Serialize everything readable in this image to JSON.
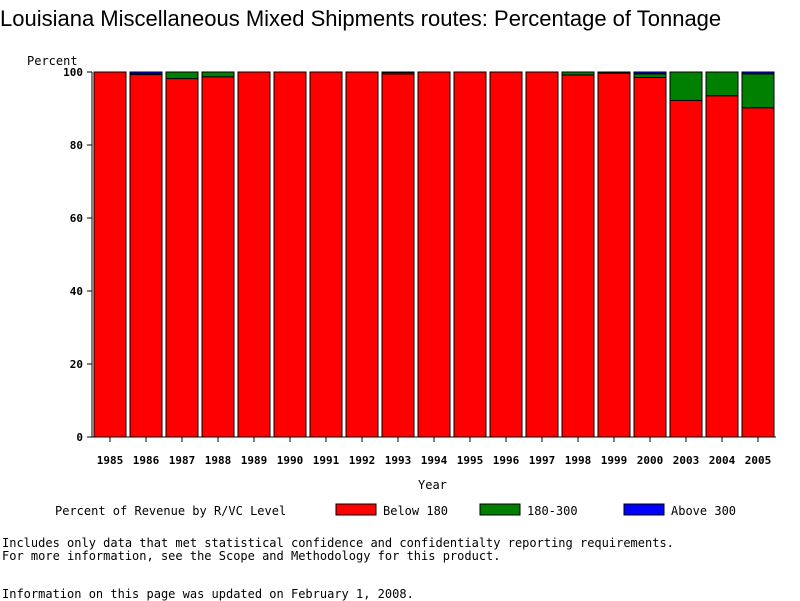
{
  "title": "Louisiana Miscellaneous Mixed Shipments routes: Percentage of Tonnage",
  "notes": {
    "line1": "Includes only data that met statistical confidence and confidentialty reporting requirements.",
    "line2": "For more information, see the Scope and Methodology for this product.",
    "updated": "Information on this page was updated on February 1, 2008."
  },
  "colors": {
    "below_180": "#ff0000",
    "r180_300": "#008000",
    "above_300": "#0000ff"
  },
  "chart_data": {
    "type": "bar",
    "stacked": true,
    "title": "Louisiana Miscellaneous Mixed Shipments routes: Percentage of Tonnage",
    "xlabel": "Year",
    "ylabel": "Percent",
    "ylim": [
      0,
      100
    ],
    "yticks": [
      0,
      20,
      40,
      60,
      80,
      100
    ],
    "legend_title": "Percent of Revenue by R/VC Level",
    "legend_position": "bottom",
    "categories": [
      "1985",
      "1986",
      "1987",
      "1988",
      "1989",
      "1990",
      "1991",
      "1992",
      "1993",
      "1994",
      "1995",
      "1996",
      "1997",
      "1998",
      "1999",
      "2000",
      "2003",
      "2004",
      "2005"
    ],
    "series": [
      {
        "name": "Below 180",
        "color": "#ff0000",
        "values": [
          100,
          99.3,
          98.2,
          98.7,
          100,
          100,
          100,
          100,
          99.5,
          100,
          100,
          100,
          100,
          99.2,
          99.7,
          98.5,
          92.2,
          93.5,
          90.2
        ]
      },
      {
        "name": "180-300",
        "color": "#008000",
        "values": [
          0,
          0.2,
          1.8,
          1.3,
          0,
          0,
          0,
          0,
          0.4,
          0,
          0,
          0,
          0,
          0.8,
          0.3,
          1.0,
          7.8,
          6.5,
          9.3
        ]
      },
      {
        "name": "Above 300",
        "color": "#0000ff",
        "values": [
          0,
          0.5,
          0,
          0,
          0,
          0,
          0,
          0,
          0.1,
          0,
          0,
          0,
          0,
          0,
          0,
          0.5,
          0,
          0,
          0.5
        ]
      }
    ]
  }
}
